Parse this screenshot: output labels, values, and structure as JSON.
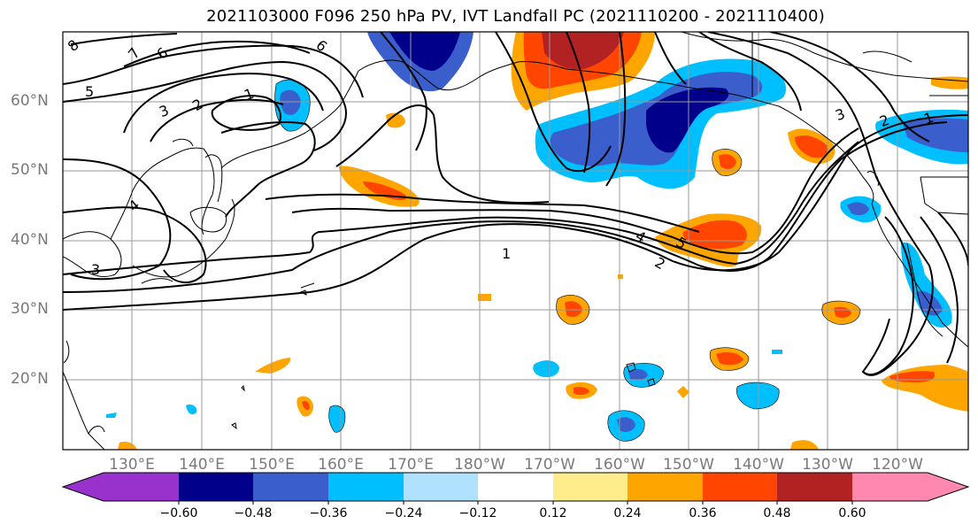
{
  "title": "2021103000 F096 250 hPa PV, IVT Landfall PC (2021110200 - 2021110400)",
  "lat_labels": [
    "60°N",
    "50°N",
    "40°N",
    "30°N",
    "20°N"
  ],
  "lon_labels": [
    "130°E",
    "140°E",
    "150°E",
    "160°E",
    "170°E",
    "180°W",
    "170°W",
    "160°W",
    "150°W",
    "140°W",
    "130°W",
    "120°W"
  ],
  "contour_labels": [
    "8",
    "7",
    "6",
    "5",
    "3",
    "2",
    "1",
    "6",
    "4",
    "3",
    "1",
    "4",
    "5",
    "2",
    "3",
    "2",
    "1"
  ],
  "colorbar": {
    "colors": [
      "#9932cc",
      "#00008b",
      "#3a5fcd",
      "#00bfff",
      "#b0e2ff",
      "#ffffff",
      "#ffec8b",
      "#ffa500",
      "#ff4500",
      "#b22222",
      "#ff88b0"
    ],
    "ticks": [
      "−0.60",
      "−0.48",
      "−0.36",
      "−0.24",
      "−0.12",
      "0.12",
      "0.24",
      "0.36",
      "0.48",
      "0.60"
    ]
  }
}
